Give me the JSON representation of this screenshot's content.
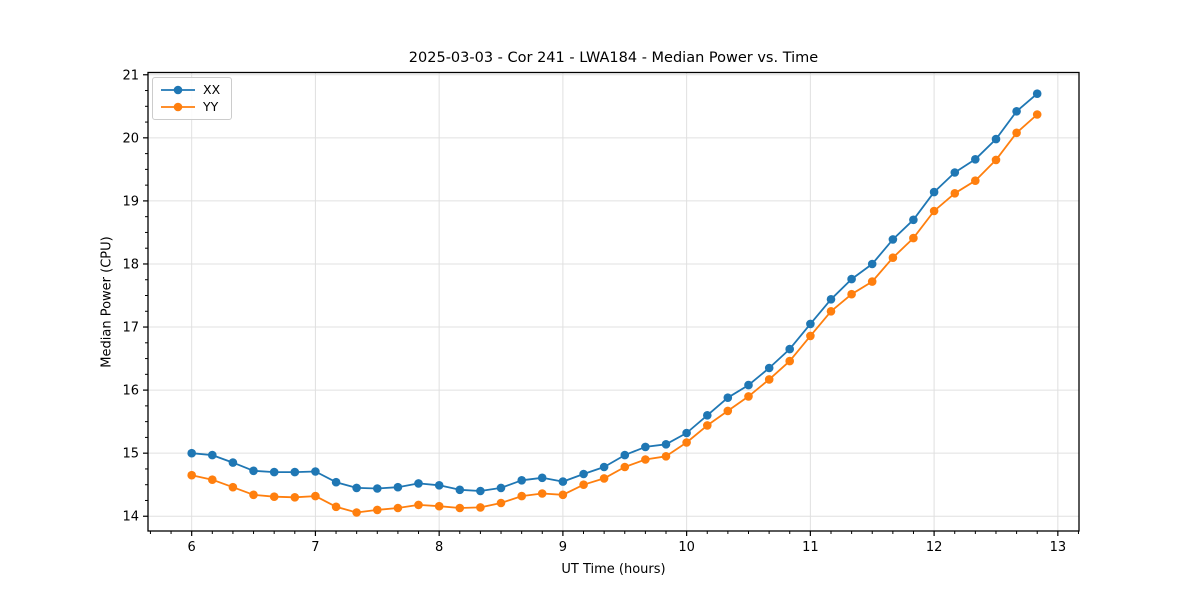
{
  "chart_data": {
    "type": "line",
    "title": "2025-03-03 - Cor 241 - LWA184 - Median Power vs. Time",
    "xlabel": "UT Time (hours)",
    "ylabel": "Median Power (CPU)",
    "xlim": [
      5.647,
      13.171
    ],
    "ylim": [
      13.766,
      21.036
    ],
    "x_ticks": [
      6,
      7,
      8,
      9,
      10,
      11,
      12,
      13
    ],
    "y_ticks": [
      14,
      15,
      16,
      17,
      18,
      19,
      20,
      21
    ],
    "x_minor_step": 0.1667,
    "y_minor_step": 0.25,
    "grid": true,
    "legend_position": "upper-left",
    "x": [
      6.0,
      6.167,
      6.333,
      6.5,
      6.667,
      6.833,
      7.0,
      7.167,
      7.333,
      7.5,
      7.667,
      7.833,
      8.0,
      8.167,
      8.333,
      8.5,
      8.667,
      8.833,
      9.0,
      9.167,
      9.333,
      9.5,
      9.667,
      9.833,
      10.0,
      10.167,
      10.333,
      10.5,
      10.667,
      10.833,
      11.0,
      11.167,
      11.333,
      11.5,
      11.667,
      11.833,
      12.0,
      12.167,
      12.333,
      12.5,
      12.667,
      12.833
    ],
    "series": [
      {
        "name": "XX",
        "color": "#1f77b4",
        "values": [
          15.0,
          14.97,
          14.85,
          14.72,
          14.7,
          14.7,
          14.71,
          14.54,
          14.45,
          14.44,
          14.46,
          14.52,
          14.49,
          14.42,
          14.4,
          14.45,
          14.57,
          14.61,
          14.55,
          14.67,
          14.78,
          14.97,
          15.1,
          15.14,
          15.32,
          15.6,
          15.88,
          16.08,
          16.35,
          16.65,
          17.05,
          17.44,
          17.76,
          18.0,
          18.39,
          18.7,
          19.14,
          19.45,
          19.66,
          19.98,
          20.42,
          20.7
        ]
      },
      {
        "name": "YY",
        "color": "#ff7f0e",
        "values": [
          14.65,
          14.58,
          14.46,
          14.34,
          14.31,
          14.3,
          14.32,
          14.15,
          14.06,
          14.1,
          14.13,
          14.18,
          14.16,
          14.13,
          14.14,
          14.21,
          14.32,
          14.36,
          14.34,
          14.5,
          14.6,
          14.78,
          14.9,
          14.95,
          15.17,
          15.44,
          15.67,
          15.9,
          16.17,
          16.46,
          16.86,
          17.25,
          17.52,
          17.72,
          18.1,
          18.41,
          18.84,
          19.12,
          19.32,
          19.65,
          20.08,
          20.37
        ]
      }
    ],
    "style": {
      "grid_color": "#e0e0e0",
      "spine_color": "#000000",
      "tick_label_color": "#000000"
    }
  }
}
